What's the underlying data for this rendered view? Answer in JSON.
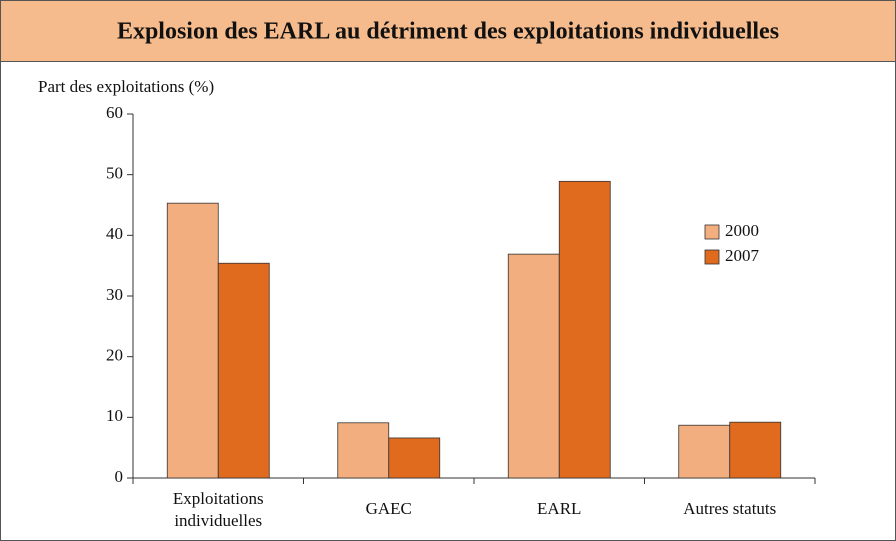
{
  "chart_data": {
    "type": "bar",
    "title": "Explosion des EARL au détriment des exploitations individuelles",
    "y_label": "Part des exploitations (%)",
    "categories": [
      "Exploitations individuelles",
      "GAEC",
      "EARL",
      "Autres statuts"
    ],
    "series": [
      {
        "name": "2000",
        "color": "#f2ae7e",
        "values": [
          45.3,
          9.1,
          36.9,
          8.7
        ]
      },
      {
        "name": "2007",
        "color": "#e06a1e",
        "values": [
          35.4,
          6.6,
          48.9,
          9.2
        ]
      }
    ],
    "ylim": [
      0,
      60
    ],
    "yticks": [
      0,
      10,
      20,
      30,
      40,
      50,
      60
    ],
    "legend": "right",
    "grid": false
  }
}
